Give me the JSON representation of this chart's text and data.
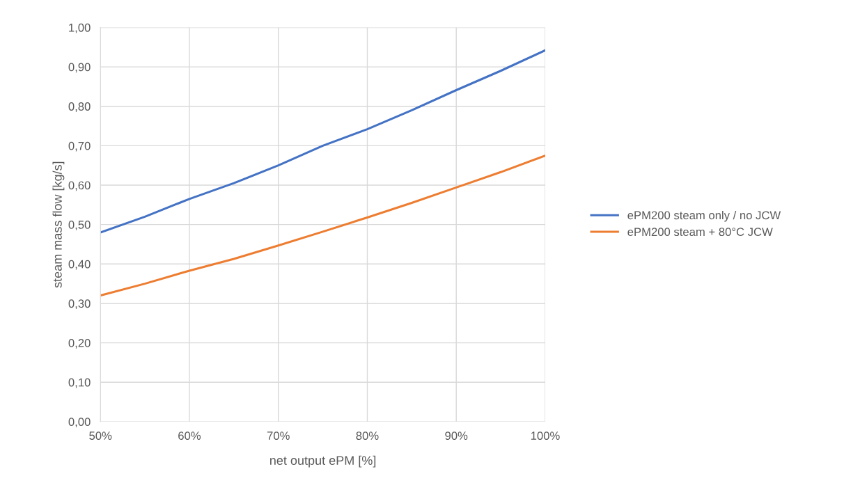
{
  "chart_data": {
    "type": "line",
    "xlabel": "net output ePM [%]",
    "ylabel": "steam mass flow [kg/s]",
    "x": [
      50,
      55,
      60,
      65,
      70,
      75,
      80,
      85,
      90,
      95,
      100
    ],
    "series": [
      {
        "name": "ePM200 steam only / no JCW",
        "color": "#4472c4",
        "values": [
          0.48,
          0.52,
          0.565,
          0.605,
          0.65,
          0.7,
          0.742,
          0.79,
          0.841,
          0.89,
          0.942
        ]
      },
      {
        "name": "ePM200 steam + 80°C JCW",
        "color": "#ed7d31",
        "values": [
          0.32,
          0.35,
          0.383,
          0.413,
          0.447,
          0.482,
          0.518,
          0.555,
          0.594,
          0.633,
          0.675
        ]
      }
    ],
    "xlim": [
      50,
      100
    ],
    "ylim": [
      0,
      1
    ],
    "xticks": [
      {
        "value": 50,
        "label": "50%"
      },
      {
        "value": 60,
        "label": "60%"
      },
      {
        "value": 70,
        "label": "70%"
      },
      {
        "value": 80,
        "label": "80%"
      },
      {
        "value": 90,
        "label": "90%"
      },
      {
        "value": 100,
        "label": "100%"
      }
    ],
    "yticks": [
      {
        "value": 0,
        "label": "0,00"
      },
      {
        "value": 0.1,
        "label": "0,10"
      },
      {
        "value": 0.2,
        "label": "0,20"
      },
      {
        "value": 0.3,
        "label": "0,30"
      },
      {
        "value": 0.4,
        "label": "0,40"
      },
      {
        "value": 0.5,
        "label": "0,50"
      },
      {
        "value": 0.6,
        "label": "0,60"
      },
      {
        "value": 0.7,
        "label": "0,70"
      },
      {
        "value": 0.8,
        "label": "0,80"
      },
      {
        "value": 0.9,
        "label": "0,90"
      },
      {
        "value": 1,
        "label": "1,00"
      }
    ],
    "grid": true,
    "legend": "right",
    "marker": "none",
    "line_style": "solid"
  }
}
